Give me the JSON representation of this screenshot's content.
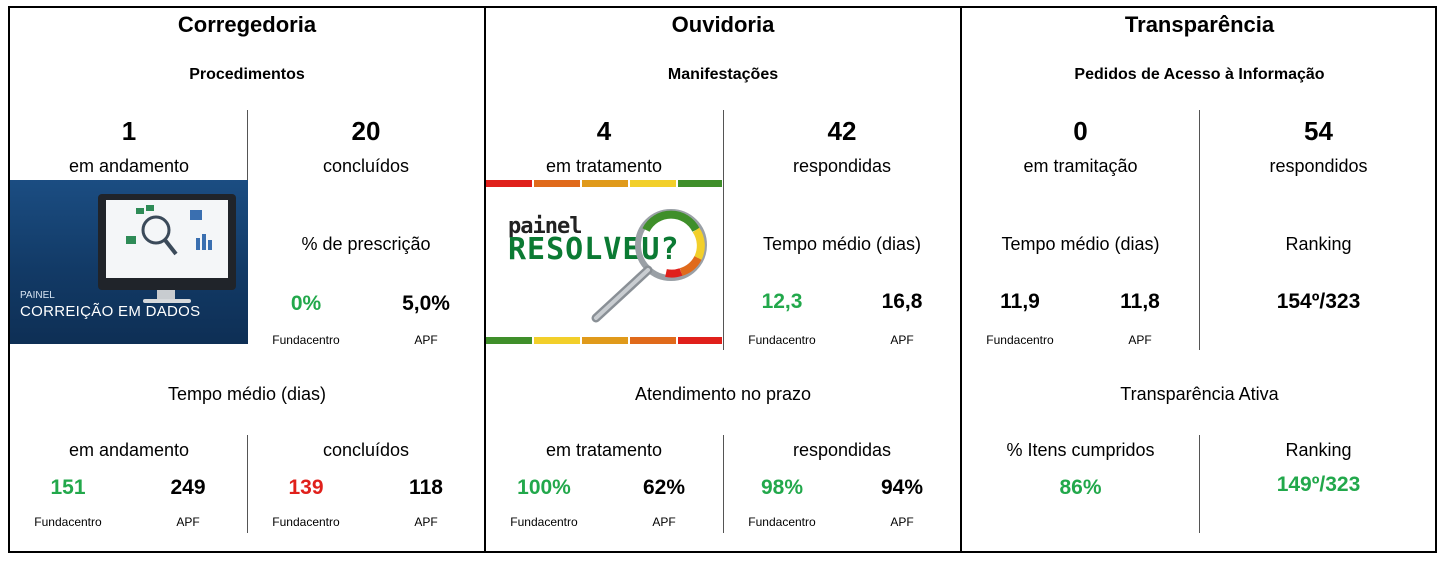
{
  "corregedoria": {
    "title": "Corregedoria",
    "subtitle": "Procedimentos",
    "left_count": "1",
    "left_label": "em andamento",
    "right_count": "20",
    "right_label": "concluídos",
    "prescricao_label": "% de prescrição",
    "prescricao_fundacentro": "0%",
    "prescricao_apf": "5,0%",
    "fundacentro_label": "Fundacentro",
    "apf_label": "APF",
    "tempo_title": "Tempo médio (dias)",
    "tempo_left_label": "em andamento",
    "tempo_left_fundacentro": "151",
    "tempo_left_apf": "249",
    "tempo_right_label": "concluídos",
    "tempo_right_fundacentro": "139",
    "tempo_right_apf": "118",
    "image_line1": "PAINEL",
    "image_line2": "CORREIÇÃO EM DADOS"
  },
  "ouvidoria": {
    "title": "Ouvidoria",
    "subtitle": "Manifestações",
    "left_count": "4",
    "left_label": "em tratamento",
    "right_count": "42",
    "right_label": "respondidas",
    "tempo_label": "Tempo médio (dias)",
    "tempo_fundacentro": "12,3",
    "tempo_apf": "16,8",
    "fundacentro_label": "Fundacentro",
    "apf_label": "APF",
    "prazo_title": "Atendimento no prazo",
    "prazo_left_label": "em tratamento",
    "prazo_left_fundacentro": "100%",
    "prazo_left_apf": "62%",
    "prazo_right_label": "respondidas",
    "prazo_right_fundacentro": "98%",
    "prazo_right_apf": "94%",
    "image_line1": "painel",
    "image_line2": "RESOLVEU?"
  },
  "transparencia": {
    "title": "Transparência",
    "subtitle": "Pedidos de Acesso à Informação",
    "left_count": "0",
    "left_label": "em tramitação",
    "right_count": "54",
    "right_label": "respondidos",
    "tempo_label": "Tempo médio (dias)",
    "tempo_fundacentro": "11,9",
    "tempo_apf": "11,8",
    "fundacentro_label": "Fundacentro",
    "apf_label": "APF",
    "ranking_label": "Ranking",
    "ranking_value": "154º/323",
    "ativa_title": "Transparência Ativa",
    "itens_label": "% Itens cumpridos",
    "itens_value": "86%",
    "ativa_ranking_label": "Ranking",
    "ativa_ranking_value": "149º/323"
  },
  "colors": {
    "green": "#22a84b",
    "red": "#e0201b"
  }
}
